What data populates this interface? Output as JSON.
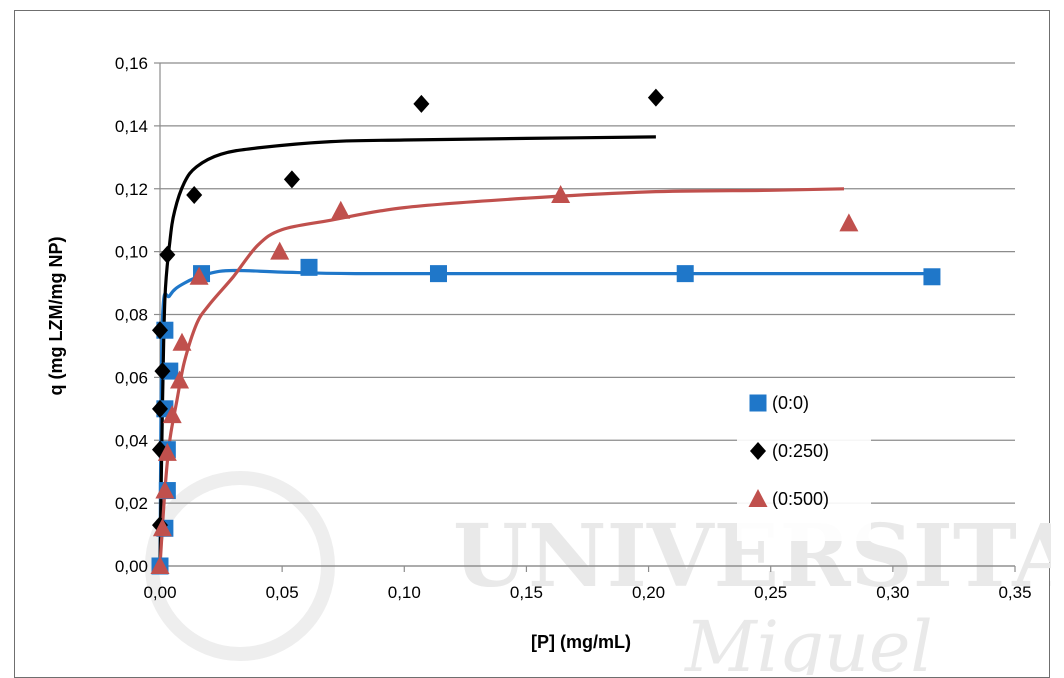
{
  "chart_data": {
    "type": "scatter",
    "title": "",
    "xlabel": "[P] (mg/mL)",
    "ylabel": "q (mg LZM/mg NP)",
    "xlim": [
      0,
      0.35
    ],
    "ylim": [
      0,
      0.16
    ],
    "x_ticks": [
      "0,00",
      "0,05",
      "0,10",
      "0,15",
      "0,20",
      "0,25",
      "0,30",
      "0,35"
    ],
    "y_ticks": [
      "0,00",
      "0,02",
      "0,04",
      "0,06",
      "0,08",
      "0,10",
      "0,12",
      "0,14",
      "0,16"
    ],
    "grid": "horizontal",
    "legend_position": "right",
    "watermark": "UNIVERSITAS Miguel",
    "series": [
      {
        "name": "(0:0)",
        "marker": "square",
        "color": "#1f77c9",
        "line_color": "#1f77c9",
        "points": [
          [
            0.0,
            0.0
          ],
          [
            0.002,
            0.012
          ],
          [
            0.003,
            0.024
          ],
          [
            0.003,
            0.037
          ],
          [
            0.002,
            0.05
          ],
          [
            0.004,
            0.062
          ],
          [
            0.002,
            0.075
          ],
          [
            0.017,
            0.093
          ],
          [
            0.061,
            0.095
          ],
          [
            0.114,
            0.093
          ],
          [
            0.215,
            0.093
          ],
          [
            0.316,
            0.092
          ]
        ],
        "fit": [
          [
            0.0,
            0.0
          ],
          [
            0.001,
            0.078
          ],
          [
            0.004,
            0.086
          ],
          [
            0.01,
            0.09
          ],
          [
            0.02,
            0.093
          ],
          [
            0.03,
            0.094
          ],
          [
            0.05,
            0.0935
          ],
          [
            0.08,
            0.093
          ],
          [
            0.15,
            0.093
          ],
          [
            0.25,
            0.093
          ],
          [
            0.315,
            0.093
          ]
        ]
      },
      {
        "name": "(0:250)",
        "marker": "diamond",
        "color": "#000000",
        "line_color": "#000000",
        "points": [
          [
            0.0,
            0.013
          ],
          [
            0.0,
            0.037
          ],
          [
            0.0,
            0.05
          ],
          [
            0.001,
            0.062
          ],
          [
            0.0,
            0.075
          ],
          [
            0.003,
            0.099
          ],
          [
            0.014,
            0.118
          ],
          [
            0.054,
            0.123
          ],
          [
            0.107,
            0.147
          ],
          [
            0.203,
            0.149
          ]
        ],
        "fit": [
          [
            0.0,
            0.0
          ],
          [
            0.001,
            0.05
          ],
          [
            0.002,
            0.085
          ],
          [
            0.004,
            0.103
          ],
          [
            0.006,
            0.113
          ],
          [
            0.01,
            0.122
          ],
          [
            0.015,
            0.127
          ],
          [
            0.025,
            0.131
          ],
          [
            0.04,
            0.133
          ],
          [
            0.07,
            0.135
          ],
          [
            0.1,
            0.1355
          ],
          [
            0.15,
            0.136
          ],
          [
            0.203,
            0.1365
          ]
        ]
      },
      {
        "name": "(0:500)",
        "marker": "triangle",
        "color": "#c0504d",
        "line_color": "#c0504d",
        "points": [
          [
            0.0,
            0.0
          ],
          [
            0.001,
            0.012
          ],
          [
            0.002,
            0.024
          ],
          [
            0.003,
            0.036
          ],
          [
            0.005,
            0.048
          ],
          [
            0.008,
            0.059
          ],
          [
            0.009,
            0.071
          ],
          [
            0.016,
            0.092
          ],
          [
            0.049,
            0.1
          ],
          [
            0.074,
            0.113
          ],
          [
            0.164,
            0.118
          ],
          [
            0.282,
            0.109
          ]
        ],
        "fit": [
          [
            0.0,
            0.0
          ],
          [
            0.002,
            0.024
          ],
          [
            0.004,
            0.04
          ],
          [
            0.007,
            0.053
          ],
          [
            0.01,
            0.065
          ],
          [
            0.015,
            0.077
          ],
          [
            0.02,
            0.083
          ],
          [
            0.03,
            0.092
          ],
          [
            0.04,
            0.102
          ],
          [
            0.05,
            0.107
          ],
          [
            0.07,
            0.11
          ],
          [
            0.1,
            0.114
          ],
          [
            0.15,
            0.117
          ],
          [
            0.2,
            0.119
          ],
          [
            0.25,
            0.1195
          ],
          [
            0.28,
            0.12
          ]
        ]
      }
    ]
  }
}
